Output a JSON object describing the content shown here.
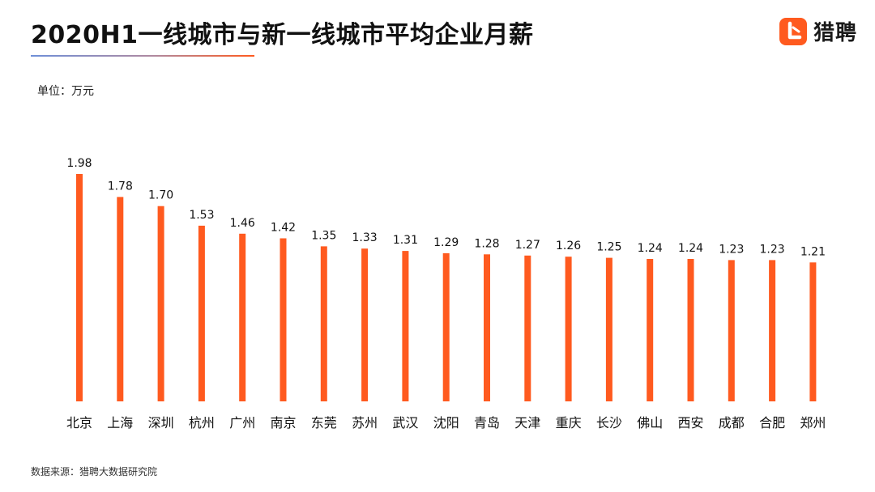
{
  "header": {
    "title": "2020H1一线城市与新一线城市平均企业月薪",
    "brand_name": "猎聘",
    "brand_color": "#ff5a1f"
  },
  "unit_label": "单位：万元",
  "source_label": "数据来源：猎聘大数据研究院",
  "chart_data": {
    "type": "bar",
    "title": "2020H1一线城市与新一线城市平均企业月薪",
    "xlabel": "",
    "ylabel": "",
    "unit": "万元",
    "categories": [
      "北京",
      "上海",
      "深圳",
      "杭州",
      "广州",
      "南京",
      "东莞",
      "苏州",
      "武汉",
      "沈阳",
      "青岛",
      "天津",
      "重庆",
      "长沙",
      "佛山",
      "西安",
      "成都",
      "合肥",
      "郑州"
    ],
    "values": [
      1.98,
      1.78,
      1.7,
      1.53,
      1.46,
      1.42,
      1.35,
      1.33,
      1.31,
      1.29,
      1.28,
      1.27,
      1.26,
      1.25,
      1.24,
      1.24,
      1.23,
      1.23,
      1.21
    ],
    "value_labels": [
      "1.98",
      "1.78",
      "1.70",
      "1.53",
      "1.46",
      "1.42",
      "1.35",
      "1.33",
      "1.31",
      "1.29",
      "1.28",
      "1.27",
      "1.26",
      "1.25",
      "1.24",
      "1.24",
      "1.23",
      "1.23",
      "1.21"
    ],
    "ylim": [
      0,
      1.98
    ],
    "bar_color": "#ff5a1f",
    "grid": false,
    "legend": "none"
  }
}
